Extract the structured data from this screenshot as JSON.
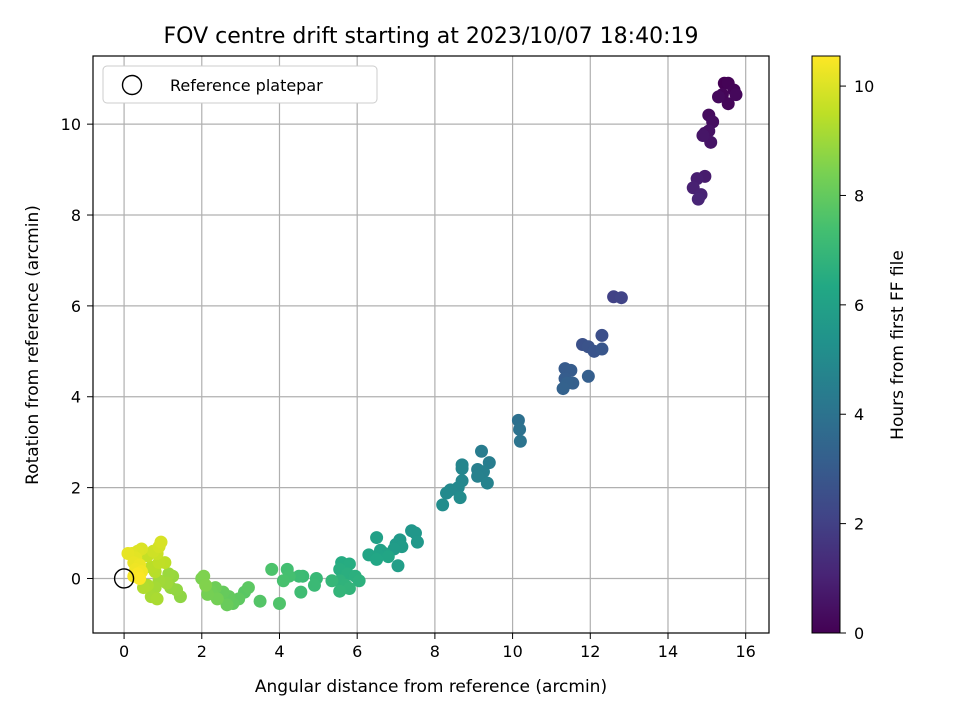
{
  "chart_data": {
    "type": "scatter",
    "title": "FOV centre drift starting at 2023/10/07 18:40:19",
    "xlabel": "Angular distance from reference (arcmin)",
    "ylabel": "Rotation from reference (arcmin)",
    "xlim": [
      -0.8,
      16.6
    ],
    "ylim": [
      -1.2,
      11.5
    ],
    "xticks": [
      "0",
      "2",
      "4",
      "6",
      "8",
      "10",
      "12",
      "14",
      "16"
    ],
    "yticks": [
      "0",
      "2",
      "4",
      "6",
      "8",
      "10"
    ],
    "grid": true,
    "legend": {
      "position": "top-left",
      "label": "Reference platepar"
    },
    "colorbar": {
      "label": "Hours from first FF file",
      "range": [
        0,
        10.55
      ],
      "ticks": [
        "0",
        "2",
        "4",
        "6",
        "8",
        "10"
      ],
      "colormap": "viridis"
    },
    "reference_point": {
      "x": 0,
      "y": 0
    },
    "points": [
      {
        "x": 15.45,
        "y": 10.9,
        "h": 0.0
      },
      {
        "x": 15.55,
        "y": 10.9,
        "h": 0.06
      },
      {
        "x": 15.7,
        "y": 10.75,
        "h": 0.1
      },
      {
        "x": 15.4,
        "y": 10.65,
        "h": 0.14
      },
      {
        "x": 15.55,
        "y": 10.45,
        "h": 0.18
      },
      {
        "x": 15.75,
        "y": 10.65,
        "h": 0.22
      },
      {
        "x": 15.3,
        "y": 10.6,
        "h": 0.26
      },
      {
        "x": 15.05,
        "y": 10.2,
        "h": 0.32
      },
      {
        "x": 15.15,
        "y": 10.05,
        "h": 0.38
      },
      {
        "x": 14.95,
        "y": 9.8,
        "h": 0.44
      },
      {
        "x": 15.05,
        "y": 9.85,
        "h": 0.5
      },
      {
        "x": 15.1,
        "y": 9.6,
        "h": 0.56
      },
      {
        "x": 14.9,
        "y": 9.75,
        "h": 0.62
      },
      {
        "x": 14.95,
        "y": 8.85,
        "h": 0.8
      },
      {
        "x": 14.75,
        "y": 8.8,
        "h": 0.88
      },
      {
        "x": 14.65,
        "y": 8.6,
        "h": 0.95
      },
      {
        "x": 14.85,
        "y": 8.45,
        "h": 1.02
      },
      {
        "x": 14.78,
        "y": 8.35,
        "h": 1.1
      },
      {
        "x": 12.6,
        "y": 6.2,
        "h": 2.05
      },
      {
        "x": 12.8,
        "y": 6.18,
        "h": 2.12
      },
      {
        "x": 12.3,
        "y": 5.35,
        "h": 2.55
      },
      {
        "x": 11.8,
        "y": 5.15,
        "h": 2.62
      },
      {
        "x": 11.95,
        "y": 5.1,
        "h": 2.68
      },
      {
        "x": 12.1,
        "y": 5.0,
        "h": 2.75
      },
      {
        "x": 12.3,
        "y": 5.05,
        "h": 2.8
      },
      {
        "x": 11.35,
        "y": 4.62,
        "h": 3.0
      },
      {
        "x": 11.5,
        "y": 4.58,
        "h": 3.05
      },
      {
        "x": 11.35,
        "y": 4.4,
        "h": 3.1
      },
      {
        "x": 11.95,
        "y": 4.45,
        "h": 3.15
      },
      {
        "x": 11.55,
        "y": 4.3,
        "h": 3.2
      },
      {
        "x": 11.4,
        "y": 4.3,
        "h": 3.26
      },
      {
        "x": 11.3,
        "y": 4.18,
        "h": 3.3
      },
      {
        "x": 10.15,
        "y": 3.48,
        "h": 3.9
      },
      {
        "x": 10.18,
        "y": 3.28,
        "h": 3.98
      },
      {
        "x": 10.2,
        "y": 3.02,
        "h": 4.05
      },
      {
        "x": 9.2,
        "y": 2.8,
        "h": 4.4
      },
      {
        "x": 9.4,
        "y": 2.55,
        "h": 4.45
      },
      {
        "x": 9.1,
        "y": 2.4,
        "h": 4.5
      },
      {
        "x": 9.25,
        "y": 2.35,
        "h": 4.55
      },
      {
        "x": 9.1,
        "y": 2.25,
        "h": 4.6
      },
      {
        "x": 9.35,
        "y": 2.1,
        "h": 4.65
      },
      {
        "x": 8.7,
        "y": 2.5,
        "h": 4.75
      },
      {
        "x": 8.7,
        "y": 2.42,
        "h": 4.8
      },
      {
        "x": 8.7,
        "y": 2.15,
        "h": 4.85
      },
      {
        "x": 8.6,
        "y": 2.0,
        "h": 4.9
      },
      {
        "x": 8.4,
        "y": 1.95,
        "h": 4.95
      },
      {
        "x": 8.3,
        "y": 1.88,
        "h": 5.0
      },
      {
        "x": 8.65,
        "y": 1.78,
        "h": 5.05
      },
      {
        "x": 8.2,
        "y": 1.62,
        "h": 5.1
      },
      {
        "x": 7.4,
        "y": 1.05,
        "h": 5.5
      },
      {
        "x": 7.5,
        "y": 1.0,
        "h": 5.55
      },
      {
        "x": 7.55,
        "y": 0.8,
        "h": 5.6
      },
      {
        "x": 7.1,
        "y": 0.85,
        "h": 5.65
      },
      {
        "x": 7.0,
        "y": 0.75,
        "h": 5.7
      },
      {
        "x": 7.15,
        "y": 0.7,
        "h": 5.75
      },
      {
        "x": 6.95,
        "y": 0.65,
        "h": 5.8
      },
      {
        "x": 7.05,
        "y": 0.28,
        "h": 5.85
      },
      {
        "x": 6.5,
        "y": 0.9,
        "h": 5.95
      },
      {
        "x": 6.6,
        "y": 0.62,
        "h": 6.0
      },
      {
        "x": 6.7,
        "y": 0.55,
        "h": 6.05
      },
      {
        "x": 6.55,
        "y": 0.5,
        "h": 6.1
      },
      {
        "x": 6.3,
        "y": 0.52,
        "h": 6.15
      },
      {
        "x": 6.8,
        "y": 0.48,
        "h": 6.2
      },
      {
        "x": 6.5,
        "y": 0.42,
        "h": 6.25
      },
      {
        "x": 5.6,
        "y": 0.35,
        "h": 6.45
      },
      {
        "x": 5.8,
        "y": 0.32,
        "h": 6.5
      },
      {
        "x": 5.55,
        "y": 0.2,
        "h": 6.55
      },
      {
        "x": 5.75,
        "y": 0.1,
        "h": 6.6
      },
      {
        "x": 5.95,
        "y": 0.05,
        "h": 6.65
      },
      {
        "x": 6.05,
        "y": -0.05,
        "h": 6.7
      },
      {
        "x": 5.55,
        "y": -0.05,
        "h": 6.75
      },
      {
        "x": 5.7,
        "y": -0.15,
        "h": 6.8
      },
      {
        "x": 5.8,
        "y": -0.22,
        "h": 6.85
      },
      {
        "x": 5.55,
        "y": -0.28,
        "h": 6.9
      },
      {
        "x": 5.35,
        "y": -0.05,
        "h": 6.95
      },
      {
        "x": 4.95,
        "y": 0.0,
        "h": 7.05
      },
      {
        "x": 4.9,
        "y": -0.15,
        "h": 7.1
      },
      {
        "x": 4.6,
        "y": 0.05,
        "h": 7.15
      },
      {
        "x": 4.5,
        "y": 0.05,
        "h": 7.2
      },
      {
        "x": 4.55,
        "y": -0.3,
        "h": 7.25
      },
      {
        "x": 4.2,
        "y": 0.2,
        "h": 7.35
      },
      {
        "x": 4.25,
        "y": 0.05,
        "h": 7.4
      },
      {
        "x": 4.1,
        "y": -0.05,
        "h": 7.45
      },
      {
        "x": 3.8,
        "y": 0.2,
        "h": 7.55
      },
      {
        "x": 4.0,
        "y": -0.55,
        "h": 7.6
      },
      {
        "x": 3.5,
        "y": -0.5,
        "h": 7.7
      },
      {
        "x": 3.1,
        "y": -0.3,
        "h": 7.8
      },
      {
        "x": 3.2,
        "y": -0.2,
        "h": 7.85
      },
      {
        "x": 2.95,
        "y": -0.45,
        "h": 7.9
      },
      {
        "x": 2.8,
        "y": -0.55,
        "h": 7.95
      },
      {
        "x": 2.7,
        "y": -0.4,
        "h": 8.0
      },
      {
        "x": 2.55,
        "y": -0.3,
        "h": 8.05
      },
      {
        "x": 2.65,
        "y": -0.58,
        "h": 8.1
      },
      {
        "x": 2.35,
        "y": -0.2,
        "h": 8.2
      },
      {
        "x": 2.25,
        "y": -0.3,
        "h": 8.25
      },
      {
        "x": 2.4,
        "y": -0.45,
        "h": 8.3
      },
      {
        "x": 2.15,
        "y": -0.35,
        "h": 8.35
      },
      {
        "x": 2.0,
        "y": 0.0,
        "h": 8.45
      },
      {
        "x": 2.05,
        "y": 0.05,
        "h": 8.5
      },
      {
        "x": 2.1,
        "y": -0.15,
        "h": 8.55
      },
      {
        "x": 1.45,
        "y": -0.4,
        "h": 8.75
      },
      {
        "x": 1.35,
        "y": -0.25,
        "h": 8.8
      },
      {
        "x": 1.2,
        "y": -0.2,
        "h": 8.85
      },
      {
        "x": 1.25,
        "y": 0.05,
        "h": 8.9
      },
      {
        "x": 1.15,
        "y": 0.1,
        "h": 8.95
      },
      {
        "x": 1.1,
        "y": -0.1,
        "h": 9.0
      },
      {
        "x": 0.9,
        "y": -0.05,
        "h": 9.05
      },
      {
        "x": 0.8,
        "y": -0.2,
        "h": 9.1
      },
      {
        "x": 0.7,
        "y": -0.4,
        "h": 9.15
      },
      {
        "x": 0.85,
        "y": -0.45,
        "h": 9.2
      },
      {
        "x": 0.6,
        "y": -0.15,
        "h": 9.25
      },
      {
        "x": 0.5,
        "y": -0.2,
        "h": 9.3
      },
      {
        "x": 0.8,
        "y": 0.15,
        "h": 9.4
      },
      {
        "x": 0.7,
        "y": 0.25,
        "h": 9.45
      },
      {
        "x": 1.05,
        "y": 0.35,
        "h": 9.5
      },
      {
        "x": 0.9,
        "y": 0.35,
        "h": 9.55
      },
      {
        "x": 0.6,
        "y": 0.5,
        "h": 9.62
      },
      {
        "x": 0.85,
        "y": 0.55,
        "h": 9.7
      },
      {
        "x": 0.75,
        "y": 0.6,
        "h": 9.78
      },
      {
        "x": 0.9,
        "y": 0.7,
        "h": 9.85
      },
      {
        "x": 0.95,
        "y": 0.8,
        "h": 9.92
      },
      {
        "x": 0.45,
        "y": 0.65,
        "h": 9.98
      },
      {
        "x": 0.35,
        "y": 0.6,
        "h": 10.03
      },
      {
        "x": 0.2,
        "y": 0.55,
        "h": 10.08
      },
      {
        "x": 0.3,
        "y": 0.45,
        "h": 10.12
      },
      {
        "x": 0.1,
        "y": 0.55,
        "h": 10.17
      },
      {
        "x": 0.25,
        "y": 0.35,
        "h": 10.22
      },
      {
        "x": 0.4,
        "y": 0.3,
        "h": 10.27
      },
      {
        "x": 0.3,
        "y": 0.2,
        "h": 10.32
      },
      {
        "x": 0.45,
        "y": 0.15,
        "h": 10.37
      },
      {
        "x": 0.25,
        "y": 0.05,
        "h": 10.42
      },
      {
        "x": 0.35,
        "y": 0.1,
        "h": 10.47
      },
      {
        "x": 0.4,
        "y": 0.0,
        "h": 10.52
      }
    ]
  }
}
